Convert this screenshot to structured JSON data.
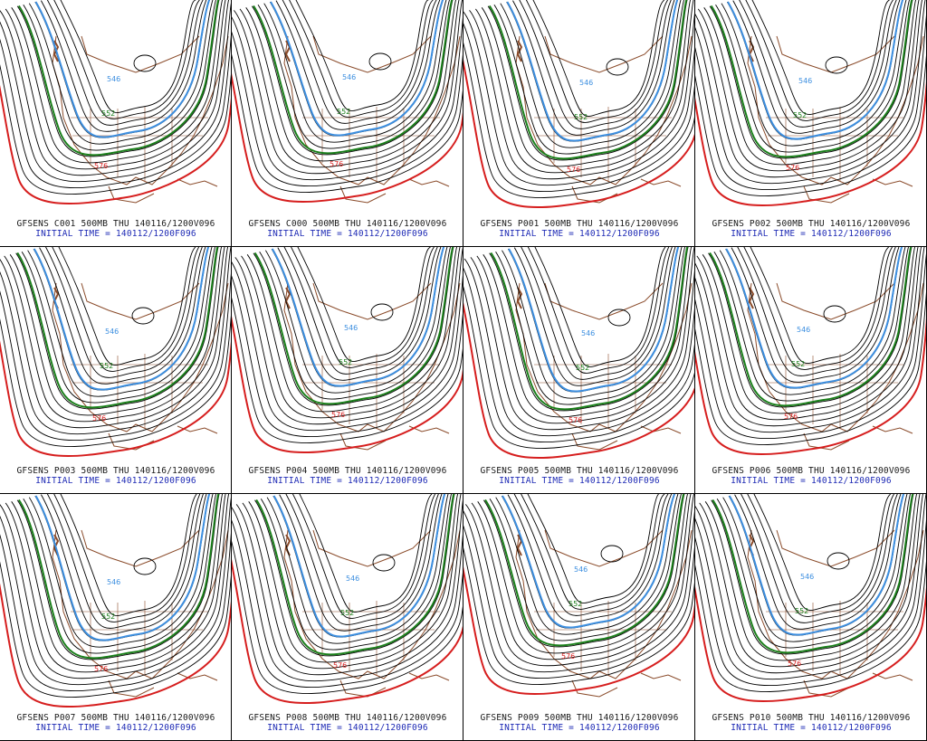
{
  "colors": {
    "coast": "#8a4b2a",
    "contour": "#000000",
    "c552": "#1a7f1a",
    "c546": "#3d8fe0",
    "c576": "#d61e1e",
    "title": "#1a1a1a",
    "initial": "#1f2bb5"
  },
  "contour_labels": {
    "red": "576",
    "green": "552",
    "blue": "546"
  },
  "panels": [
    {
      "title": "GFSENS C001 500MB THU 140116/1200V096",
      "initial": "INITIAL TIME = 140112/1200F096"
    },
    {
      "title": "GFSENS C000 500MB THU 140116/1200V096",
      "initial": "INITIAL TIME = 140112/1200F096"
    },
    {
      "title": "GFSENS P001 500MB THU 140116/1200V096",
      "initial": "INITIAL TIME = 140112/1200F096"
    },
    {
      "title": "GFSENS P002 500MB THU 140116/1200V096",
      "initial": "INITIAL TIME = 140112/1200F096"
    },
    {
      "title": "GFSENS P003 500MB THU 140116/1200V096",
      "initial": "INITIAL TIME = 140112/1200F096"
    },
    {
      "title": "GFSENS P004 500MB THU 140116/1200V096",
      "initial": "INITIAL TIME = 140112/1200F096"
    },
    {
      "title": "GFSENS P005 500MB THU 140116/1200V096",
      "initial": "INITIAL TIME = 140112/1200F096"
    },
    {
      "title": "GFSENS P006 500MB THU 140116/1200V096",
      "initial": "INITIAL TIME = 140112/1200F096"
    },
    {
      "title": "GFSENS P007 500MB THU 140116/1200V096",
      "initial": "INITIAL TIME = 140112/1200F096"
    },
    {
      "title": "GFSENS P008 500MB THU 140116/1200V096",
      "initial": "INITIAL TIME = 140112/1200F096"
    },
    {
      "title": "GFSENS P009 500MB THU 140116/1200V096",
      "initial": "INITIAL TIME = 140112/1200F096"
    },
    {
      "title": "GFSENS P010 500MB THU 140116/1200V096",
      "initial": "INITIAL TIME = 140112/1200F096"
    }
  ]
}
